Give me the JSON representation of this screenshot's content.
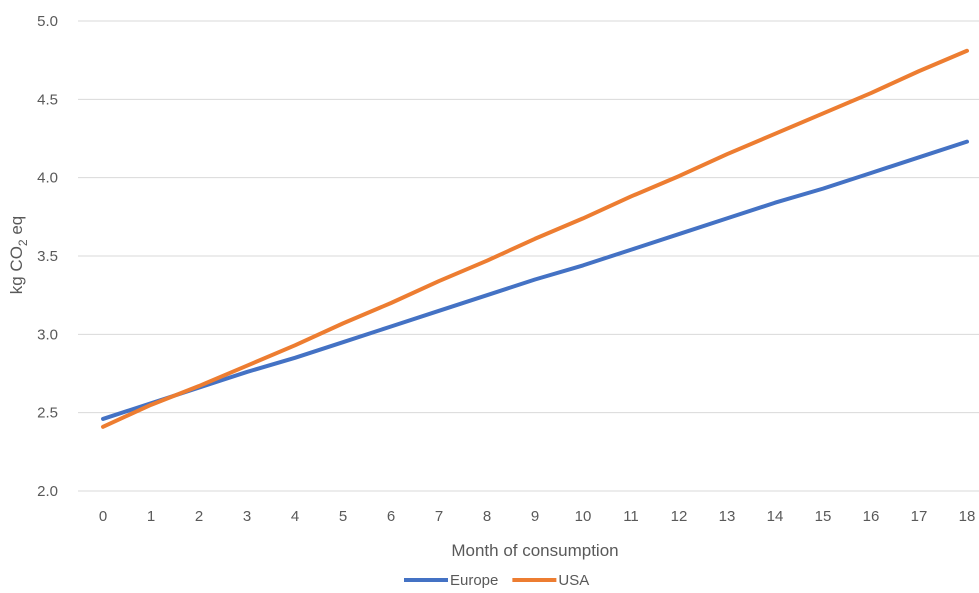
{
  "chart_data": {
    "type": "line",
    "title": "",
    "xlabel": "Month of consumption",
    "ylabel": {
      "prefix": "kg CO",
      "subscript": "2",
      "suffix": " eq"
    },
    "x": [
      0,
      1,
      2,
      3,
      4,
      5,
      6,
      7,
      8,
      9,
      10,
      11,
      12,
      13,
      14,
      15,
      16,
      17,
      18
    ],
    "x_tick_labels": [
      "0",
      "1",
      "2",
      "3",
      "4",
      "5",
      "6",
      "7",
      "8",
      "9",
      "10",
      "11",
      "12",
      "13",
      "14",
      "15",
      "16",
      "17",
      "18"
    ],
    "y_ticks": [
      2.0,
      2.5,
      3.0,
      3.5,
      4.0,
      4.5,
      5.0
    ],
    "y_tick_labels": [
      "2.0",
      "2.5",
      "3.0",
      "3.5",
      "4.0",
      "4.5",
      "5.0"
    ],
    "ylim": [
      2.0,
      5.0
    ],
    "grid": "horizontal",
    "legend_position": "bottom",
    "series": [
      {
        "name": "Europe",
        "color": "#4472C4",
        "values": [
          2.46,
          2.56,
          2.66,
          2.76,
          2.85,
          2.95,
          3.05,
          3.15,
          3.25,
          3.35,
          3.44,
          3.54,
          3.64,
          3.74,
          3.84,
          3.93,
          4.03,
          4.13,
          4.23
        ]
      },
      {
        "name": "USA",
        "color": "#ED7D31",
        "values": [
          2.41,
          2.55,
          2.67,
          2.8,
          2.93,
          3.07,
          3.2,
          3.34,
          3.47,
          3.61,
          3.74,
          3.88,
          4.01,
          4.15,
          4.28,
          4.41,
          4.54,
          4.68,
          4.81
        ]
      }
    ]
  }
}
